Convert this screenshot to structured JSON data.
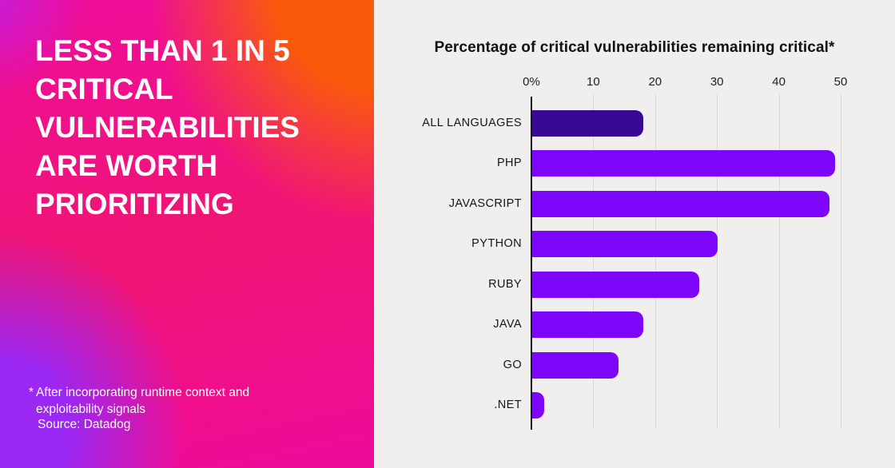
{
  "left_panel": {
    "headline_lines": [
      "LESS THAN 1 IN 5",
      "CRITICAL",
      "VULNERABILITIES",
      "ARE WORTH",
      "PRIORITIZING"
    ],
    "footnote_marker": "*",
    "footnote_text": "After incorporating runtime context and exploitability signals",
    "source_text": "Source: Datadog",
    "text_color": "#FFFFFF",
    "colors": {
      "orange": "#FA5A0C",
      "pink_top": "#EE0D9B",
      "pink_mid": "#F01573",
      "magenta": "#EF0A9B",
      "purple": "#9B27F2",
      "violet": "#C81BD6"
    }
  },
  "chart_panel": {
    "background": "#F0EFED"
  },
  "chart_data": {
    "type": "bar",
    "orientation": "horizontal",
    "title": "Percentage of critical vulnerabilities remaining critical*",
    "categories": [
      "ALL LANGUAGES",
      "PHP",
      "JAVASCRIPT",
      "PYTHON",
      "RUBY",
      "JAVA",
      "GO",
      ".NET"
    ],
    "values": [
      18,
      49,
      48,
      30,
      27,
      18,
      14,
      2
    ],
    "unit": "%",
    "xlim": [
      0,
      50
    ],
    "xticks": [
      0,
      10,
      20,
      30,
      40,
      50
    ],
    "xtick_labels": [
      "0%",
      "10",
      "20",
      "30",
      "40",
      "50"
    ],
    "grid": true,
    "legend": false,
    "bar_color": "#7D05F9",
    "highlight_bar_color": "#380A94",
    "highlight_category": "ALL LANGUAGES",
    "grid_color": "#D9D8D5",
    "axis_color": "#111111"
  }
}
